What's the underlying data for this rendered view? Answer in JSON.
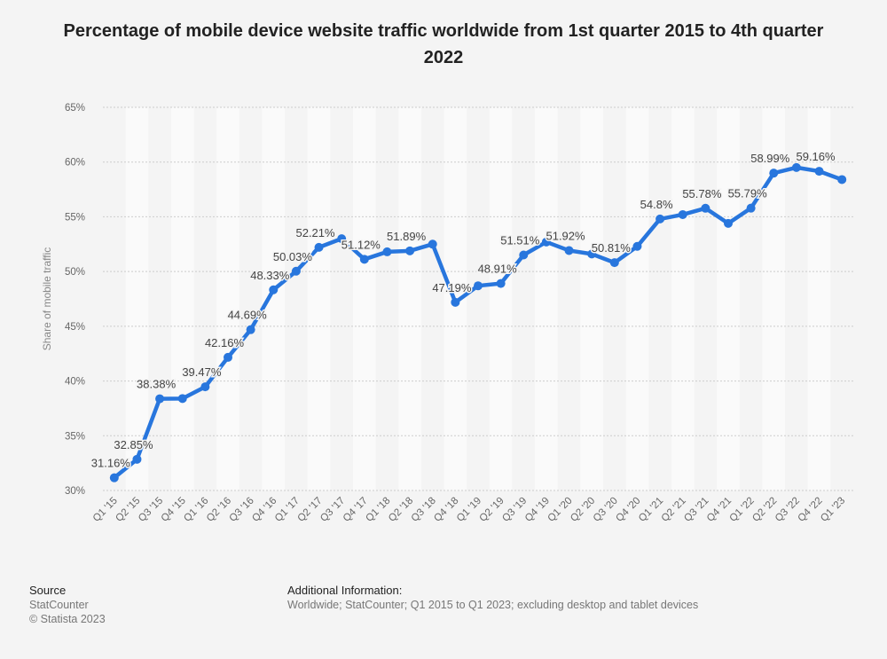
{
  "chart_data": {
    "type": "line",
    "title": "Percentage of mobile device website traffic worldwide from 1st quarter 2015 to 4th quarter 2022",
    "xlabel": "",
    "ylabel": "Share of mobile traffic",
    "ylim": [
      30,
      65
    ],
    "yticks": [
      "30%",
      "35%",
      "40%",
      "45%",
      "50%",
      "55%",
      "60%",
      "65%"
    ],
    "grid": true,
    "color": "#2876dd",
    "categories": [
      "Q1 '15",
      "Q2 '15",
      "Q3 '15",
      "Q4 '15",
      "Q1 '16",
      "Q2 '16",
      "Q3 '16",
      "Q4 '16",
      "Q1 '17",
      "Q2 '17",
      "Q3 '17",
      "Q4 '17",
      "Q1 '18",
      "Q2 '18",
      "Q3 '18",
      "Q4 '18",
      "Q1 '19",
      "Q2 '19",
      "Q3 '19",
      "Q4 '19",
      "Q1 '20",
      "Q2 '20",
      "Q3 '20",
      "Q4 '20",
      "Q1 '21",
      "Q2 '21",
      "Q3 '21",
      "Q4 '21",
      "Q1 '22",
      "Q2 '22",
      "Q3 '22",
      "Q4 '22",
      "Q1 '23"
    ],
    "values": [
      31.16,
      32.85,
      38.38,
      38.4,
      39.47,
      42.16,
      44.69,
      48.33,
      50.03,
      52.21,
      53.0,
      51.12,
      51.8,
      51.89,
      52.5,
      47.19,
      48.7,
      48.91,
      51.51,
      52.7,
      51.92,
      51.6,
      50.81,
      52.3,
      54.8,
      55.2,
      55.78,
      54.4,
      55.79,
      58.99,
      59.5,
      59.16,
      58.4
    ],
    "data_labels": [
      "31.16%",
      "32.85%",
      "38.38%",
      null,
      "39.47%",
      "42.16%",
      "44.69%",
      "48.33%",
      "50.03%",
      "52.21%",
      null,
      "51.12%",
      null,
      "51.89%",
      null,
      "47.19%",
      null,
      "48.91%",
      "51.51%",
      null,
      "51.92%",
      null,
      "50.81%",
      null,
      "54.8%",
      null,
      "55.78%",
      null,
      "55.79%",
      "58.99%",
      null,
      "59.16%",
      null
    ]
  },
  "footer": {
    "source_heading": "Source",
    "source": "StatCounter",
    "copyright": "© Statista 2023",
    "additional_heading": "Additional Information:",
    "additional": "Worldwide; StatCounter; Q1 2015 to Q1 2023; excluding desktop and tablet devices"
  }
}
